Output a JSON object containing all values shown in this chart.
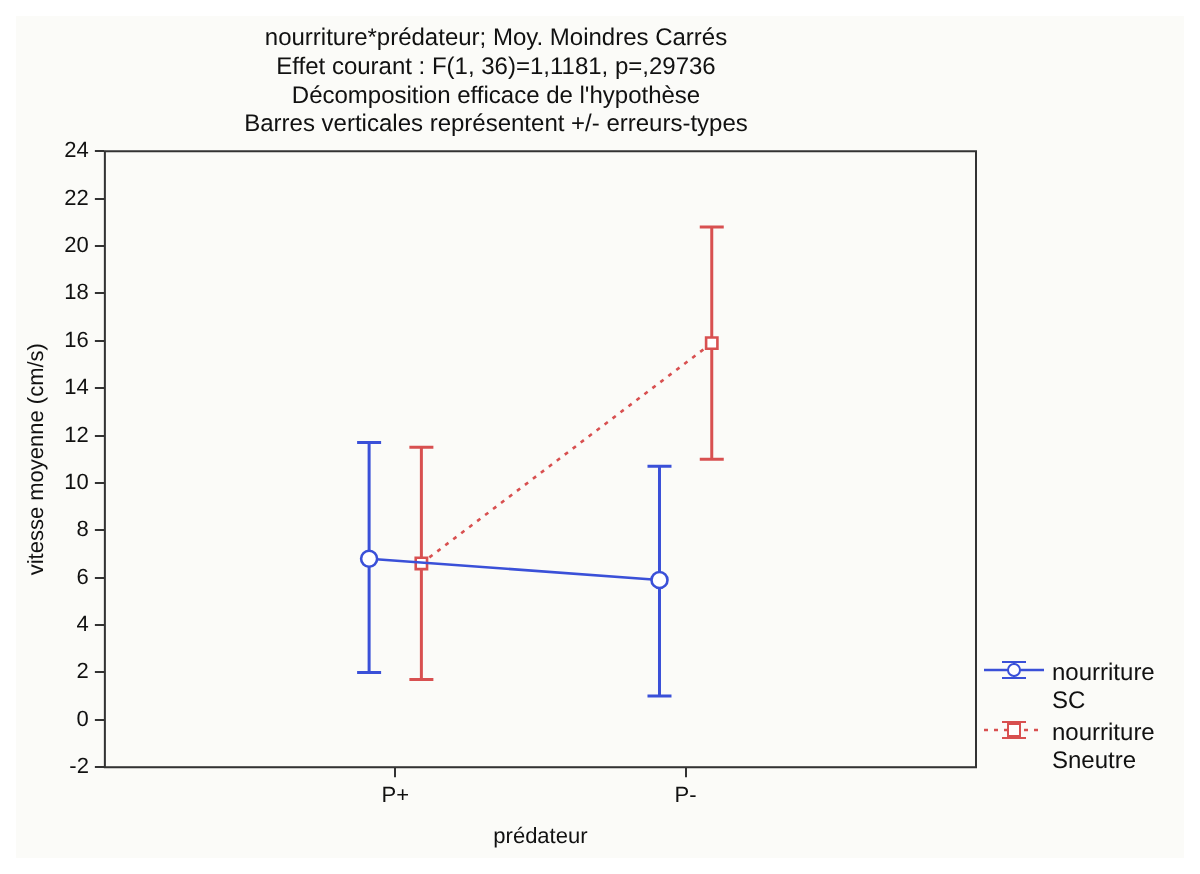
{
  "chart_data": {
    "type": "line",
    "title": [
      "nourriture*prédateur; Moy. Moindres Carrés",
      "Effet courant : F(1, 36)=1,1181, p=,29736",
      "Décomposition efficace de l'hypothèse",
      "Barres verticales représentent +/- erreurs-types"
    ],
    "xlabel": "prédateur",
    "ylabel": "vitesse moyenne (cm/s)",
    "categories": [
      "P+",
      "P-"
    ],
    "series": [
      {
        "name": "nourriture SC",
        "color": "#3a50d8",
        "values": [
          6.8,
          5.9
        ],
        "errors": [
          [
            2.0,
            11.7
          ],
          [
            1.0,
            10.7
          ]
        ],
        "marker": "circle",
        "line_style": "solid"
      },
      {
        "name": "nourriture Sneutre",
        "color": "#d85050",
        "values": [
          6.6,
          15.9
        ],
        "errors": [
          [
            1.7,
            11.5
          ],
          [
            11.0,
            20.8
          ]
        ],
        "marker": "square",
        "line_style": "dotted"
      }
    ],
    "ylim": [
      -2,
      24
    ],
    "yticks": [
      -2,
      0,
      2,
      4,
      6,
      8,
      10,
      12,
      14,
      16,
      18,
      20,
      22,
      24
    ],
    "grid": false,
    "legend": "bottom right"
  }
}
